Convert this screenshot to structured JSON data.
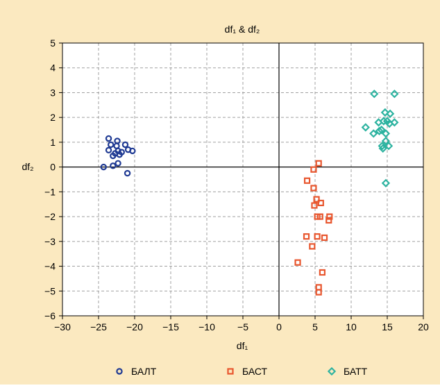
{
  "chart_data": {
    "type": "scatter",
    "title": "df₁ & df₂",
    "xlabel": "df₁",
    "ylabel": "df₂",
    "xlim": [
      -30,
      20
    ],
    "ylim": [
      -6,
      5
    ],
    "x_ticks": [
      -30,
      -25,
      -20,
      -15,
      -10,
      -5,
      0,
      5,
      10,
      15,
      20
    ],
    "y_ticks": [
      -6,
      -5,
      -4,
      -3,
      -2,
      -1,
      0,
      1,
      2,
      3,
      4,
      5
    ],
    "x_tick_labels": [
      "−30",
      "−25",
      "−20",
      "−15",
      "−10",
      "−5",
      "0",
      "5",
      "10",
      "15",
      "20"
    ],
    "y_tick_labels": [
      "−6",
      "−5",
      "−4",
      "−3",
      "−2",
      "−1",
      "0",
      "1",
      "2",
      "3",
      "4",
      "5"
    ],
    "grid": true,
    "zero_lines": true,
    "legend_position": "bottom",
    "series": [
      {
        "name": "БАЛТ",
        "marker": "circle",
        "color": "#1f3a93",
        "points": [
          [
            -23.6,
            1.15
          ],
          [
            -22.4,
            1.05
          ],
          [
            -23.3,
            0.9
          ],
          [
            -22.5,
            0.85
          ],
          [
            -21.3,
            0.9
          ],
          [
            -20.9,
            0.7
          ],
          [
            -20.3,
            0.65
          ],
          [
            -23.6,
            0.68
          ],
          [
            -22.3,
            0.65
          ],
          [
            -21.8,
            0.6
          ],
          [
            -22.7,
            0.55
          ],
          [
            -22.1,
            0.5
          ],
          [
            -23.0,
            0.45
          ],
          [
            -22.3,
            0.15
          ],
          [
            -23.0,
            0.05
          ],
          [
            -24.3,
            0.0
          ],
          [
            -21.0,
            -0.25
          ]
        ]
      },
      {
        "name": "БАСТ",
        "marker": "square",
        "color": "#e8562e",
        "points": [
          [
            5.5,
            0.15
          ],
          [
            4.8,
            -0.1
          ],
          [
            3.9,
            -0.55
          ],
          [
            4.8,
            -0.85
          ],
          [
            5.2,
            -1.3
          ],
          [
            5.8,
            -1.45
          ],
          [
            4.9,
            -1.55
          ],
          [
            7.0,
            -2.0
          ],
          [
            5.7,
            -2.0
          ],
          [
            5.3,
            -2.0
          ],
          [
            6.9,
            -2.15
          ],
          [
            3.8,
            -2.8
          ],
          [
            5.3,
            -2.8
          ],
          [
            6.3,
            -2.85
          ],
          [
            4.6,
            -3.2
          ],
          [
            2.6,
            -3.85
          ],
          [
            6.0,
            -4.25
          ],
          [
            5.5,
            -4.85
          ],
          [
            5.5,
            -5.05
          ]
        ]
      },
      {
        "name": "БАТТ",
        "marker": "diamond",
        "color": "#2db3a0",
        "points": [
          [
            13.2,
            2.95
          ],
          [
            16.0,
            2.95
          ],
          [
            14.7,
            2.2
          ],
          [
            15.4,
            2.15
          ],
          [
            14.5,
            1.85
          ],
          [
            15.0,
            1.85
          ],
          [
            13.8,
            1.8
          ],
          [
            15.3,
            1.75
          ],
          [
            16.0,
            1.8
          ],
          [
            12.0,
            1.6
          ],
          [
            14.2,
            1.5
          ],
          [
            13.9,
            1.45
          ],
          [
            13.1,
            1.35
          ],
          [
            14.8,
            1.35
          ],
          [
            14.8,
            1.05
          ],
          [
            15.2,
            0.85
          ],
          [
            14.3,
            0.85
          ],
          [
            14.4,
            0.75
          ],
          [
            14.8,
            -0.65
          ]
        ]
      }
    ]
  },
  "colors": {
    "frame_background": "#fbe9c0",
    "plot_background": "#ffffff",
    "grid": "#a0a0a0",
    "axis": "#000000"
  }
}
